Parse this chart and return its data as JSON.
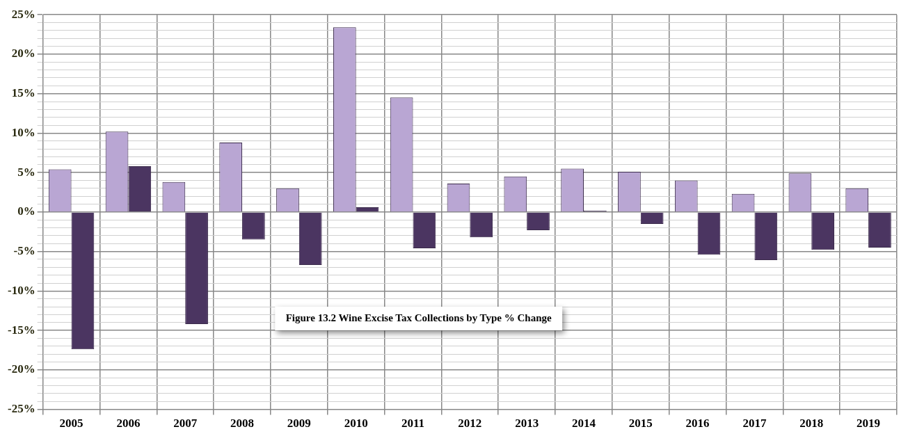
{
  "chart_data": {
    "type": "bar",
    "annotations": [
      "Figure 13.2 Wine Excise Tax Collections by Type % Change"
    ],
    "categories": [
      "2005",
      "2006",
      "2007",
      "2008",
      "2009",
      "2010",
      "2011",
      "2012",
      "2013",
      "2014",
      "2015",
      "2016",
      "2017",
      "2018",
      "2019"
    ],
    "series": [
      {
        "color": "#b9a6d3",
        "values": [
          5.4,
          10.2,
          3.8,
          8.8,
          3.0,
          23.4,
          14.5,
          3.6,
          4.5,
          5.5,
          5.1,
          4.0,
          2.3,
          4.9,
          3.0
        ]
      },
      {
        "color": "#4b3561",
        "values": [
          -17.4,
          5.8,
          -14.2,
          -3.5,
          -6.7,
          0.6,
          -4.6,
          -3.2,
          -2.3,
          0.2,
          -1.5,
          -5.4,
          -6.1,
          -4.8,
          -4.5
        ]
      }
    ],
    "ylim": [
      -25,
      25
    ],
    "yticks": [
      {
        "value": -25,
        "label": "-25%"
      },
      {
        "value": -24,
        "label": null
      },
      {
        "value": -23,
        "label": null
      },
      {
        "value": -22,
        "label": null
      },
      {
        "value": -21,
        "label": null
      },
      {
        "value": -20,
        "label": "-20%"
      },
      {
        "value": -19,
        "label": null
      },
      {
        "value": -18,
        "label": null
      },
      {
        "value": -17,
        "label": null
      },
      {
        "value": -16,
        "label": null
      },
      {
        "value": -15,
        "label": "-15%"
      },
      {
        "value": -14,
        "label": null
      },
      {
        "value": -13,
        "label": null
      },
      {
        "value": -12,
        "label": null
      },
      {
        "value": -11,
        "label": null
      },
      {
        "value": -10,
        "label": "-10%"
      },
      {
        "value": -9,
        "label": null
      },
      {
        "value": -8,
        "label": null
      },
      {
        "value": -7,
        "label": null
      },
      {
        "value": -6,
        "label": null
      },
      {
        "value": -5,
        "label": "-5%"
      },
      {
        "value": -4,
        "label": null
      },
      {
        "value": -3,
        "label": null
      },
      {
        "value": -2,
        "label": null
      },
      {
        "value": -1,
        "label": null
      },
      {
        "value": 0,
        "label": "0%"
      },
      {
        "value": 1,
        "label": null
      },
      {
        "value": 2,
        "label": null
      },
      {
        "value": 3,
        "label": null
      },
      {
        "value": 4,
        "label": null
      },
      {
        "value": 5,
        "label": "5%"
      },
      {
        "value": 6,
        "label": null
      },
      {
        "value": 7,
        "label": null
      },
      {
        "value": 8,
        "label": null
      },
      {
        "value": 9,
        "label": null
      },
      {
        "value": 10,
        "label": "10%"
      },
      {
        "value": 11,
        "label": null
      },
      {
        "value": 12,
        "label": null
      },
      {
        "value": 13,
        "label": null
      },
      {
        "value": 14,
        "label": null
      },
      {
        "value": 15,
        "label": "15%"
      },
      {
        "value": 16,
        "label": null
      },
      {
        "value": 17,
        "label": null
      },
      {
        "value": 18,
        "label": null
      },
      {
        "value": 19,
        "label": null
      },
      {
        "value": 20,
        "label": "20%"
      },
      {
        "value": 21,
        "label": null
      },
      {
        "value": 22,
        "label": null
      },
      {
        "value": 23,
        "label": null
      },
      {
        "value": 24,
        "label": null
      },
      {
        "value": 25,
        "label": "25%"
      }
    ],
    "grid": true,
    "legend": false
  }
}
